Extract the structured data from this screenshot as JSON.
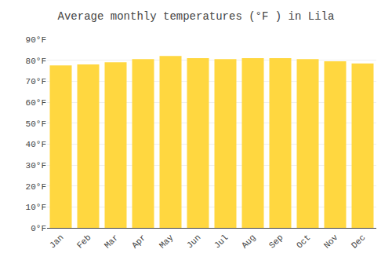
{
  "chart_data": {
    "type": "bar",
    "title": "Average monthly temperatures (°F ) in Lila",
    "categories": [
      "Jan",
      "Feb",
      "Mar",
      "Apr",
      "May",
      "Jun",
      "Jul",
      "Aug",
      "Sep",
      "Oct",
      "Nov",
      "Dec"
    ],
    "values": [
      77.5,
      78.0,
      79.0,
      80.5,
      82.0,
      81.0,
      80.5,
      81.0,
      81.0,
      80.5,
      79.5,
      78.5
    ],
    "color": "#FFD740",
    "ylim": [
      0,
      90
    ],
    "yticks": [
      {
        "value": 0,
        "label": "0°F"
      },
      {
        "value": 10,
        "label": "10°F"
      },
      {
        "value": 20,
        "label": "20°F"
      },
      {
        "value": 30,
        "label": "30°F"
      },
      {
        "value": 40,
        "label": "40°F"
      },
      {
        "value": 50,
        "label": "50°F"
      },
      {
        "value": 60,
        "label": "60°F"
      },
      {
        "value": 70,
        "label": "70°F"
      },
      {
        "value": 80,
        "label": "80°F"
      },
      {
        "value": 90,
        "label": "90°F"
      }
    ],
    "grid": true
  }
}
